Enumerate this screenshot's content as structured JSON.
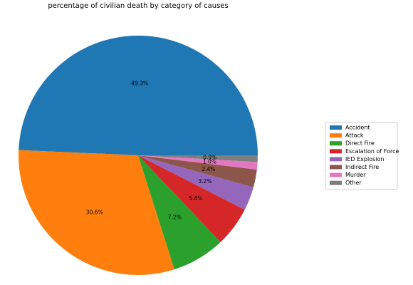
{
  "chart_data": {
    "type": "pie",
    "title": "percentage of civilian death by category of causes",
    "categories": [
      "Accident",
      "Attack",
      "Direct Fire",
      "Escalation of Force",
      "IED Explosion",
      "Indirect Fire",
      "Murder",
      "Other"
    ],
    "values": [
      49.3,
      30.6,
      7.2,
      5.4,
      3.2,
      2.4,
      1.0,
      0.9
    ],
    "labels": [
      "49.3%",
      "30.6%",
      "7.2%",
      "5.4%",
      "3.2%",
      "2.4%",
      "1.0%",
      "0.9%"
    ],
    "colors": [
      "#1f77b4",
      "#ff7f0e",
      "#2ca02c",
      "#d62728",
      "#9467bd",
      "#8c564b",
      "#e377c2",
      "#7f7f7f"
    ],
    "start_angle_deg": 0,
    "direction": "counterclockwise",
    "legend_placement": "right"
  }
}
